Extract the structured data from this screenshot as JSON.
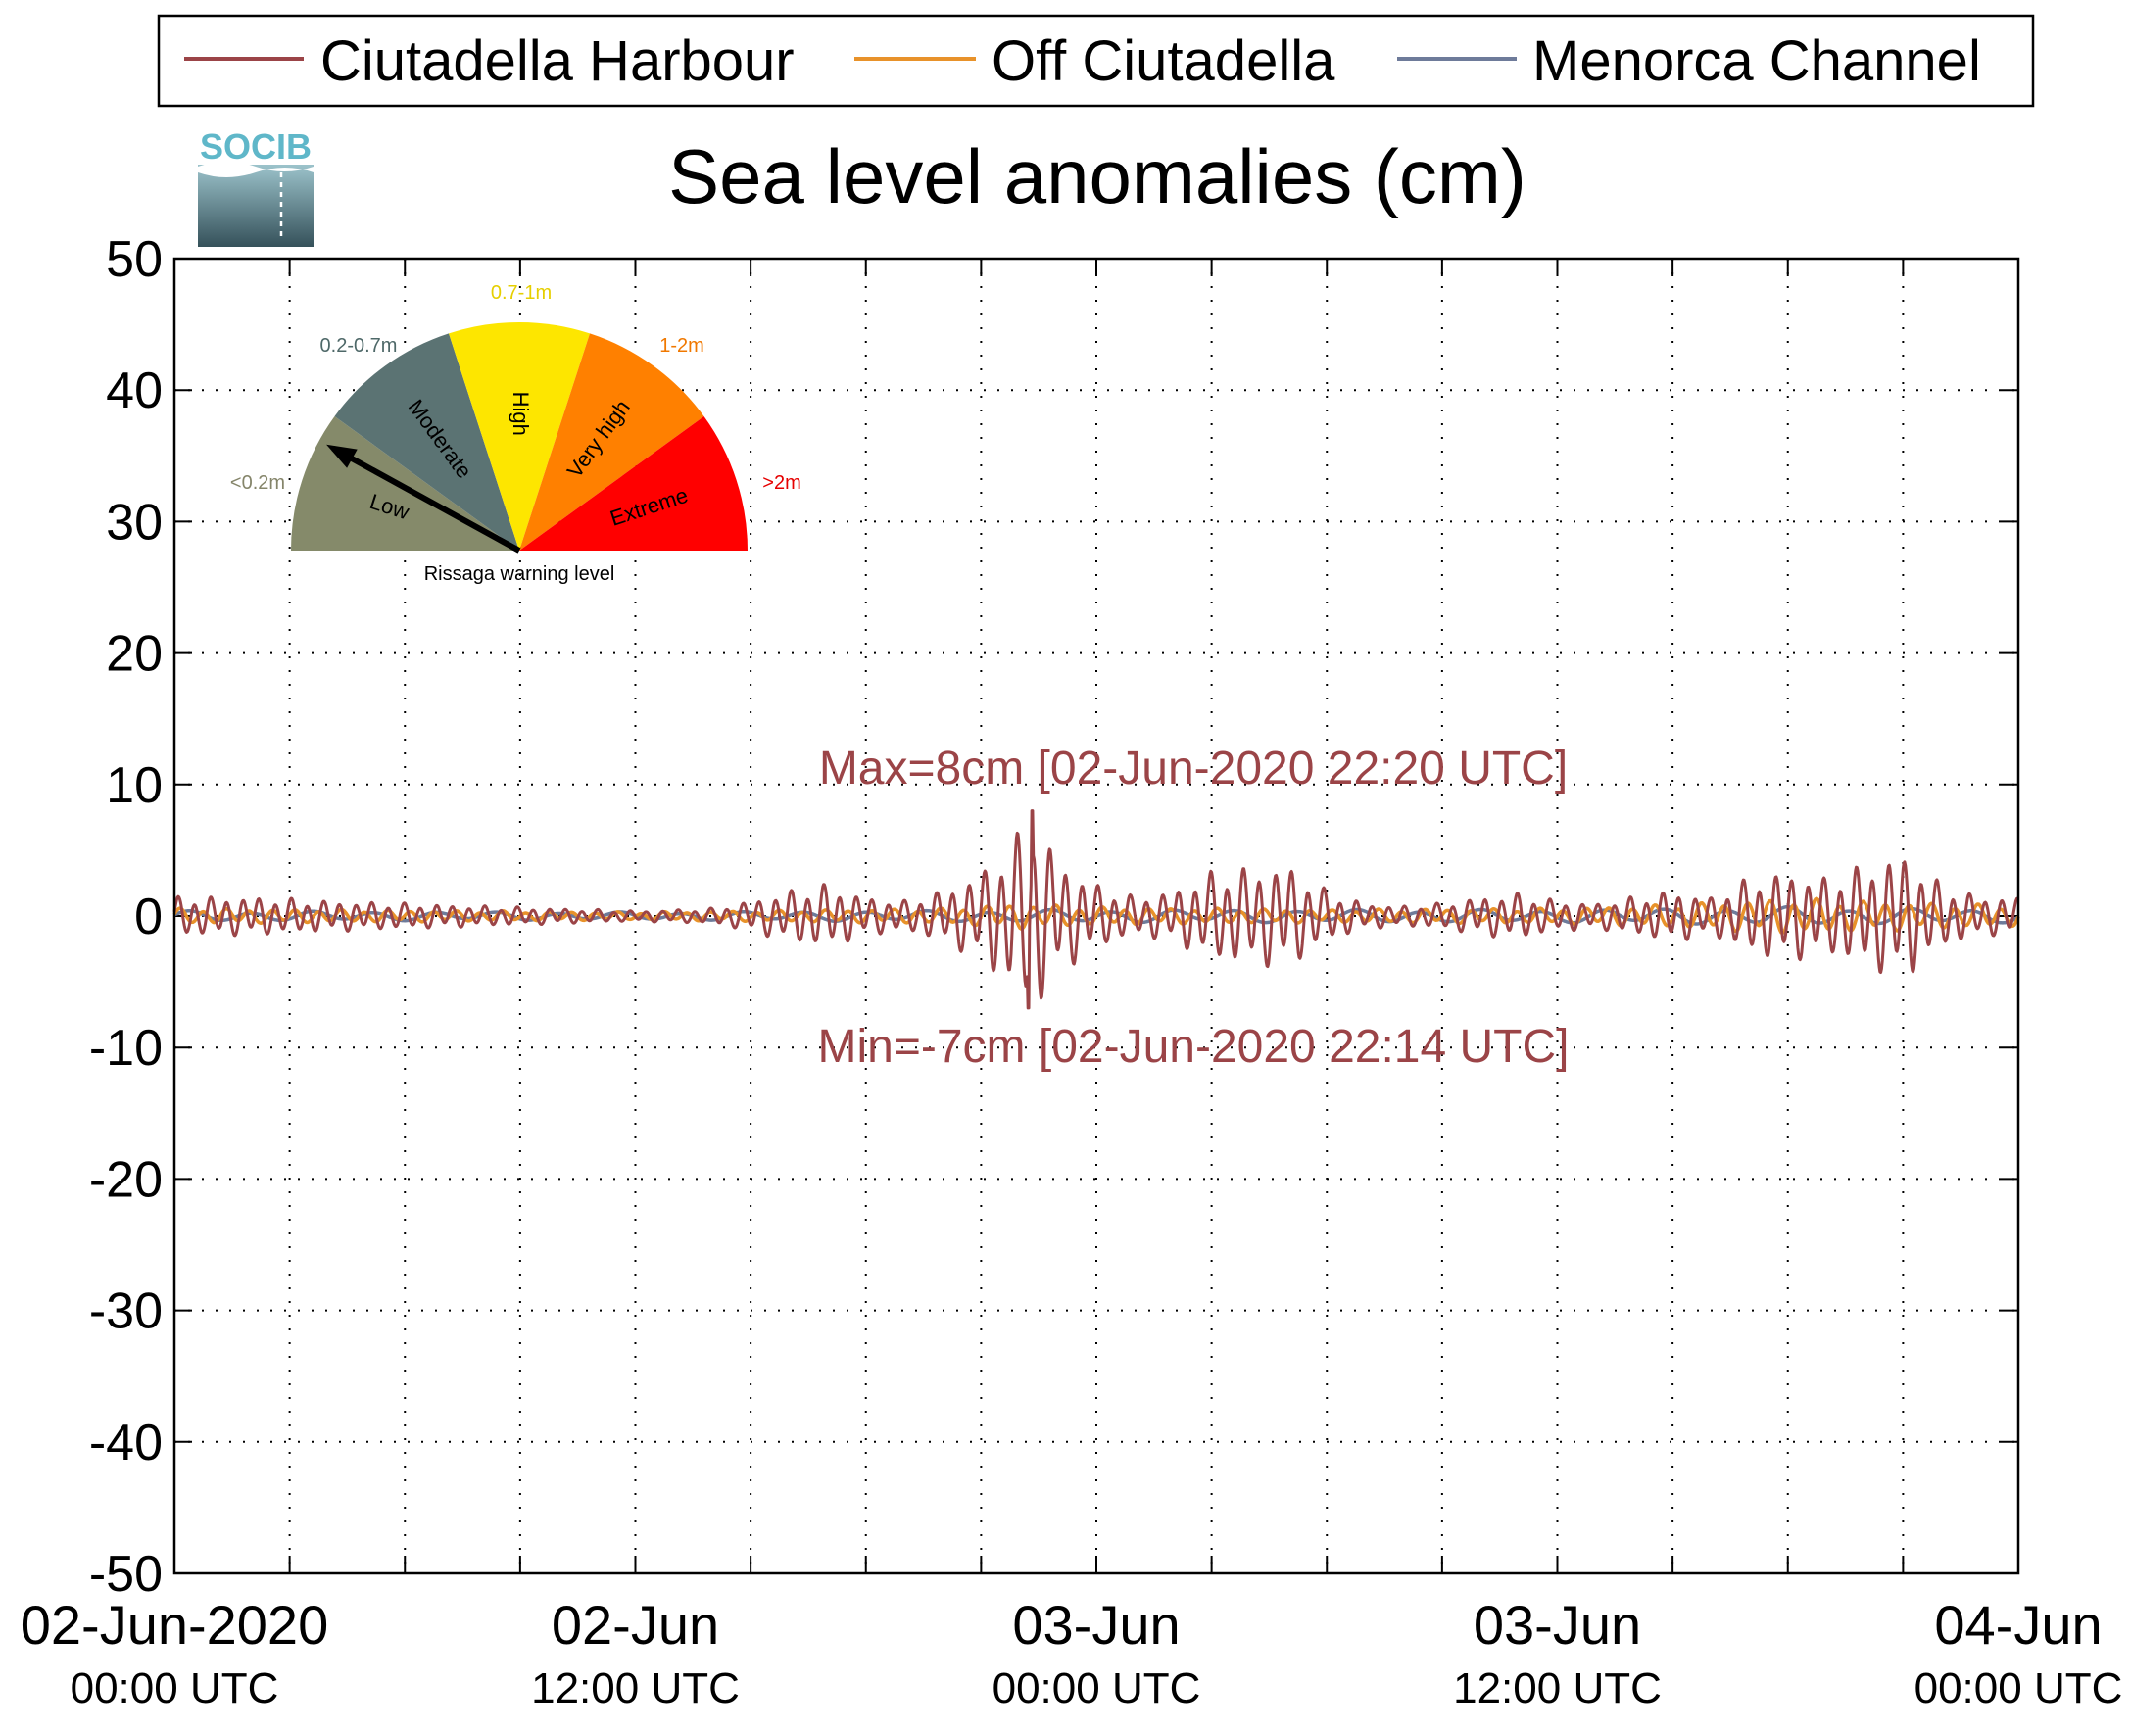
{
  "chart_data": {
    "type": "line",
    "title": "Sea level anomalies (cm)",
    "logo_text": "SOCIB",
    "ylim": [
      -50,
      50
    ],
    "yticks": [
      -50,
      -40,
      -30,
      -20,
      -10,
      0,
      10,
      20,
      30,
      40,
      50
    ],
    "x_start": "02-Jun-2020 00:00 UTC",
    "x_end": "04-Jun-2020 00:00 UTC",
    "x_range_hours": [
      0,
      48
    ],
    "x_tick_hours": [
      0,
      12,
      24,
      36,
      48
    ],
    "x_minor_tick_hours": [
      3,
      6,
      9,
      15,
      18,
      21,
      27,
      30,
      33,
      39,
      42,
      45
    ],
    "x_tick_labels": [
      {
        "date": "02-Jun-2020",
        "time": "00:00 UTC"
      },
      {
        "date": "02-Jun",
        "time": "12:00 UTC"
      },
      {
        "date": "03-Jun",
        "time": "00:00 UTC"
      },
      {
        "date": "03-Jun",
        "time": "12:00 UTC"
      },
      {
        "date": "04-Jun",
        "time": "00:00 UTC"
      }
    ],
    "grid": true,
    "legend_position": "top",
    "series": [
      {
        "name": "Ciutadella Harbour",
        "color": "#9b4447",
        "envelope_hours": [
          0,
          2,
          4,
          6,
          8,
          10,
          12,
          14,
          15,
          16,
          17,
          18,
          19,
          20,
          21,
          22,
          22.33,
          23,
          24,
          25,
          26,
          27,
          28,
          29,
          30,
          31,
          32,
          33,
          34,
          35,
          36,
          37,
          38,
          39,
          40,
          41,
          42,
          43,
          44,
          45,
          46,
          47,
          48
        ],
        "envelope_cm": [
          1.5,
          1.5,
          1.2,
          1.0,
          0.8,
          0.6,
          0.4,
          0.6,
          1.2,
          2.0,
          2.5,
          1.5,
          1.2,
          2.0,
          3.5,
          6.5,
          8.0,
          4.5,
          2.5,
          1.5,
          2.0,
          3.5,
          3.8,
          4.0,
          2.0,
          1.0,
          0.8,
          1.0,
          1.5,
          1.8,
          1.2,
          1.0,
          1.5,
          2.0,
          1.5,
          3.0,
          3.5,
          3.0,
          4.0,
          5.0,
          2.5,
          1.5,
          1.5
        ],
        "max_label": "Max=8cm [02-Jun-2020 22:20 UTC]",
        "min_label": "Min=-7cm [02-Jun-2020 22:14 UTC]",
        "max_cm": 8,
        "min_cm": -7,
        "max_hour": 22.33,
        "min_hour": 22.23
      },
      {
        "name": "Off Ciutadella",
        "color": "#e8922a",
        "envelope_hours": [
          0,
          12,
          20,
          22,
          24,
          30,
          36,
          39,
          42,
          44,
          48
        ],
        "envelope_cm": [
          0.6,
          0.3,
          0.6,
          1.0,
          0.7,
          0.5,
          0.6,
          0.9,
          1.4,
          1.2,
          0.8
        ]
      },
      {
        "name": "Menorca Channel",
        "color": "#6e7b9a",
        "envelope_hours": [
          0,
          12,
          24,
          36,
          42,
          48
        ],
        "envelope_cm": [
          0.4,
          0.3,
          0.5,
          0.5,
          0.7,
          0.5
        ]
      }
    ],
    "gauge": {
      "caption": "Rissaga warning level",
      "needle_level": "Low",
      "segments": [
        {
          "label": "Low",
          "range": "<0.2m",
          "color": "#858a6a",
          "range_color": "#85856a"
        },
        {
          "label": "Moderate",
          "range": "0.2-0.7m",
          "color": "#5b7373",
          "range_color": "#4e6868"
        },
        {
          "label": "High",
          "range": "0.7-1m",
          "color": "#fde600",
          "range_color": "#e6cf00"
        },
        {
          "label": "Very high",
          "range": "1-2m",
          "color": "#ff8000",
          "range_color": "#f07800"
        },
        {
          "label": "Extreme",
          "range": ">2m",
          "color": "#ff0000",
          "range_color": "#e60000"
        }
      ]
    }
  }
}
